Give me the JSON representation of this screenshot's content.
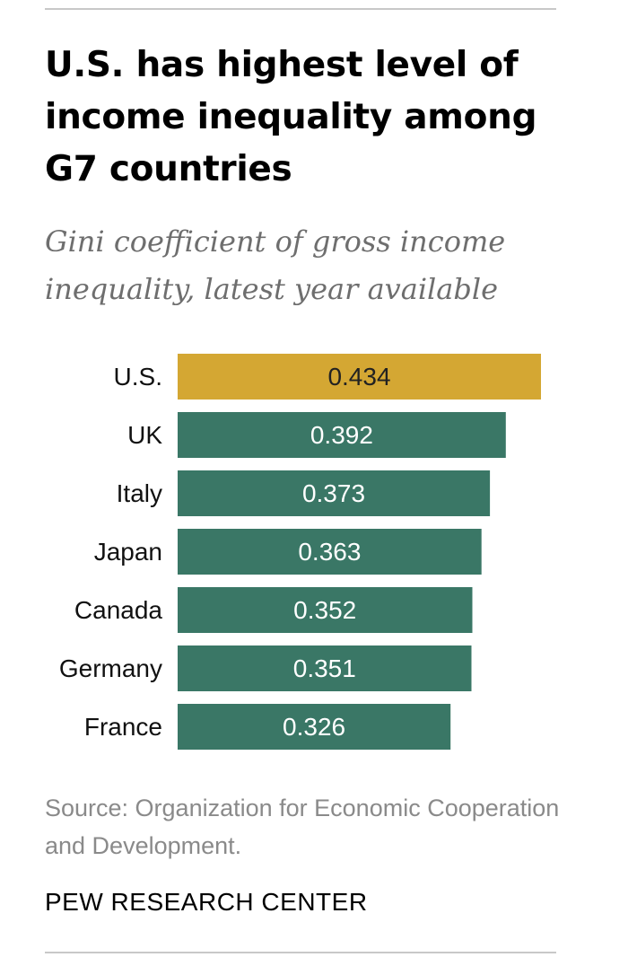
{
  "header": {
    "title": "U.S. has highest level of income inequality among G7 countries",
    "subtitle": "Gini coefficient of gross income inequality, latest year available"
  },
  "chart_data": {
    "type": "bar",
    "orientation": "horizontal",
    "title": "U.S. has highest level of income inequality among G7 countries",
    "subtitle": "Gini coefficient of gross income inequality, latest year available",
    "categories": [
      "U.S.",
      "UK",
      "Italy",
      "Japan",
      "Canada",
      "Germany",
      "France"
    ],
    "values": [
      0.434,
      0.392,
      0.373,
      0.363,
      0.352,
      0.351,
      0.326
    ],
    "value_labels": [
      "0.434",
      "0.392",
      "0.373",
      "0.363",
      "0.352",
      "0.351",
      "0.326"
    ],
    "highlight_category": "U.S.",
    "xlim": [
      0,
      0.434
    ],
    "xlabel": "",
    "ylabel": "",
    "grid": false,
    "colors": {
      "highlight": "#d4a733",
      "default": "#3a7766",
      "label_on_highlight": "#222222",
      "label_on_default": "#ffffff"
    }
  },
  "footer": {
    "source": "Source: Organization for Economic Cooperation and Development.",
    "credit": "PEW RESEARCH CENTER"
  }
}
